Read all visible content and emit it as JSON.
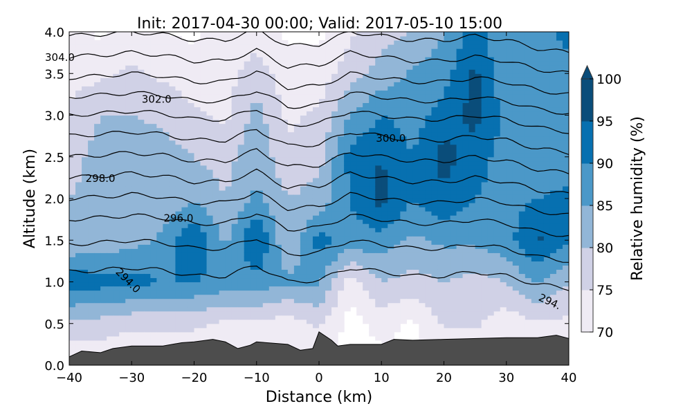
{
  "chart_data": {
    "type": "heatmap",
    "subtype": "filled-contour cross-section with isentrope contours",
    "title": "Init: 2017-04-30 00:00; Valid: 2017-05-10 15:00",
    "xlabel": "Distance (km)",
    "ylabel": "Altitude (km)",
    "xlim": [
      -40,
      40
    ],
    "ylim": [
      0,
      4
    ],
    "xticks": [
      "−40",
      "−30",
      "−20",
      "−10",
      "0",
      "10",
      "20",
      "30",
      "40"
    ],
    "xtick_values": [
      -40,
      -30,
      -20,
      -10,
      0,
      10,
      20,
      30,
      40
    ],
    "yticks": [
      "0.0",
      "0.5",
      "1.0",
      "1.5",
      "2.0",
      "2.5",
      "3.0",
      "3.5",
      "4.0"
    ],
    "ytick_values": [
      0,
      0.5,
      1,
      1.5,
      2,
      2.5,
      3,
      3.5,
      4
    ],
    "colorbar": {
      "label": "Relative humidity (%)",
      "levels": [
        70,
        75,
        80,
        85,
        90,
        95,
        100
      ],
      "tick_labels": [
        "70",
        "75",
        "80",
        "85",
        "90",
        "95",
        "100"
      ],
      "colors": [
        "#efebf4",
        "#d0d1e6",
        "#92b6d7",
        "#4b98c8",
        "#0770b0",
        "#0a4d7a"
      ],
      "extend": "max"
    },
    "rh_grid": {
      "x": [
        -40,
        -35,
        -30,
        -25,
        -20,
        -15,
        -10,
        -5,
        0,
        5,
        10,
        15,
        20,
        25,
        30,
        35,
        40
      ],
      "z": [
        0,
        0.5,
        1.0,
        1.5,
        2.0,
        2.5,
        3.0,
        3.5,
        4.0
      ],
      "values": [
        [
          70,
          70,
          70,
          70,
          70,
          70,
          70,
          70,
          70,
          68,
          68,
          68,
          68,
          68,
          68,
          68,
          68
        ],
        [
          78,
          78,
          76,
          76,
          76,
          74,
          74,
          72,
          76,
          68,
          72,
          69,
          76,
          76,
          72,
          74,
          74
        ],
        [
          94,
          92,
          92,
          90,
          90,
          88,
          88,
          86,
          86,
          72,
          80,
          78,
          80,
          78,
          80,
          86,
          80
        ],
        [
          80,
          82,
          83,
          86,
          96,
          84,
          96,
          80,
          92,
          88,
          88,
          84,
          86,
          86,
          88,
          96,
          90
        ],
        [
          80,
          82,
          82,
          82,
          84,
          80,
          86,
          80,
          82,
          90,
          97,
          90,
          94,
          90,
          88,
          90,
          92
        ],
        [
          78,
          82,
          83,
          82,
          80,
          78,
          84,
          76,
          78,
          92,
          95,
          90,
          97,
          92,
          88,
          85,
          86
        ],
        [
          76,
          80,
          80,
          79,
          76,
          74,
          82,
          74,
          76,
          85,
          90,
          88,
          92,
          97,
          88,
          88,
          90
        ],
        [
          73,
          74,
          76,
          74,
          72,
          73,
          78,
          72,
          72,
          78,
          82,
          86,
          88,
          96,
          86,
          85,
          88
        ],
        [
          72,
          69,
          72,
          70,
          69,
          72,
          72,
          69,
          69,
          74,
          78,
          80,
          85,
          92,
          85,
          88,
          92
        ]
      ]
    },
    "terrain": {
      "color": "#4d4d4d",
      "x": [
        -40,
        -38,
        -35,
        -33,
        -30,
        -25,
        -22,
        -20,
        -17,
        -15,
        -13,
        -11,
        -10,
        -5,
        -3,
        -1,
        0,
        2,
        3,
        5,
        10,
        12,
        15,
        20,
        30,
        35,
        38,
        40
      ],
      "z": [
        0.1,
        0.17,
        0.15,
        0.2,
        0.23,
        0.23,
        0.27,
        0.28,
        0.31,
        0.28,
        0.2,
        0.24,
        0.28,
        0.25,
        0.18,
        0.2,
        0.4,
        0.3,
        0.23,
        0.25,
        0.25,
        0.31,
        0.3,
        0.31,
        0.33,
        0.33,
        0.36,
        0.32
      ]
    },
    "isentropes": {
      "unit": "K",
      "x": [
        -40,
        -35,
        -30,
        -25,
        -20,
        -15,
        -10,
        -5,
        0,
        5,
        10,
        15,
        20,
        25,
        30,
        35,
        40
      ],
      "perturbation": [
        0,
        0.02,
        0.05,
        0.02,
        -0.05,
        -0.05,
        0.08,
        -0.12,
        -0.1,
        0.05,
        0,
        -0.05,
        -0.05,
        0,
        -0.05,
        -0.15,
        -0.2
      ],
      "levels": [
        294,
        295,
        296,
        297,
        298,
        299,
        300,
        301,
        302,
        303,
        304,
        305
      ],
      "base_heights_km": [
        1.12,
        1.45,
        1.75,
        2.0,
        2.25,
        2.5,
        2.75,
        3.0,
        3.22,
        3.45,
        3.7,
        3.95
      ],
      "labels": [
        {
          "text": "304.0",
          "x": -41.5,
          "z": 3.7,
          "angle": 0
        },
        {
          "text": "302.0",
          "x": -26,
          "z": 3.2,
          "angle": 0
        },
        {
          "text": "300.0",
          "x": 11.5,
          "z": 2.73,
          "angle": 0
        },
        {
          "text": "298.0",
          "x": -35,
          "z": 2.25,
          "angle": 0
        },
        {
          "text": "296.0",
          "x": -22.5,
          "z": 1.77,
          "angle": 0
        },
        {
          "text": "294.0",
          "x": -30.5,
          "z": 1.02,
          "angle": 45
        },
        {
          "text": "294.",
          "x": 37,
          "z": 0.77,
          "angle": 25
        }
      ]
    }
  }
}
